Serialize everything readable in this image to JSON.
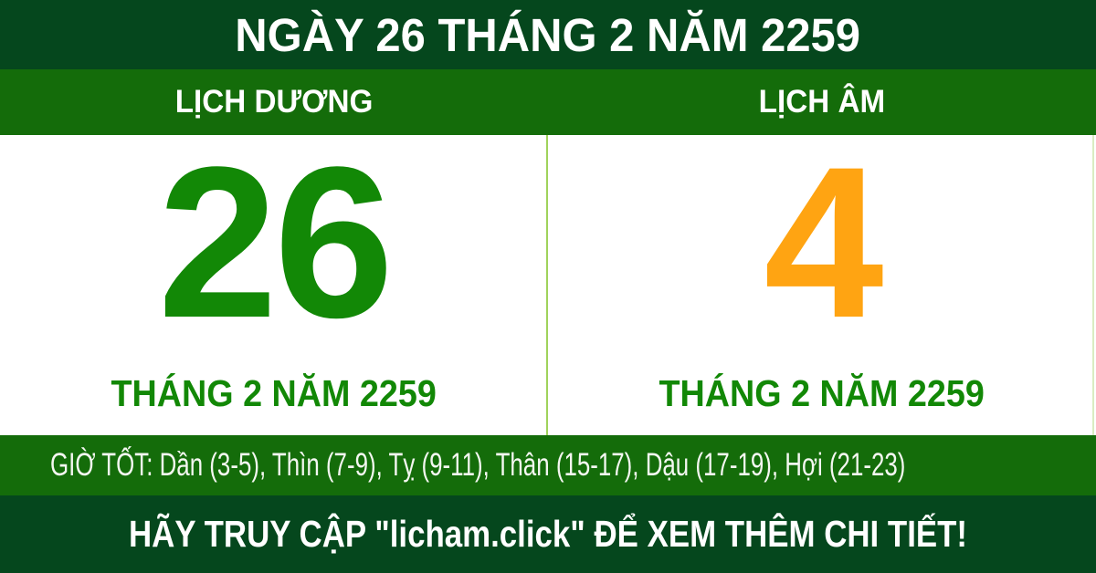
{
  "header": {
    "title": "NGÀY 26 THÁNG 2 NĂM 2259"
  },
  "calendar": {
    "solar": {
      "label": "LỊCH DƯƠNG",
      "day": "26",
      "month_year": "THÁNG 2 NĂM 2259"
    },
    "lunar": {
      "label": "LỊCH ÂM",
      "day": "4",
      "month_year": "THÁNG 2 NĂM 2259"
    }
  },
  "good_hours": "GIỜ TỐT: Dần (3-5), Thìn (7-9), Tỵ (9-11), Thân (15-17), Dậu (17-19), Hợi (21-23)",
  "footer": {
    "message": "HÃY TRUY CẬP \"licham.click\" ĐỂ XEM THÊM CHI TIẾT!"
  },
  "colors": {
    "dark_green": "#05471d",
    "green": "#146c0a",
    "solar_day_green": "#128806",
    "lunar_day_orange": "#FFA412",
    "divider_light_green": "#A0D35B",
    "text_white": "#FFFFFF"
  }
}
